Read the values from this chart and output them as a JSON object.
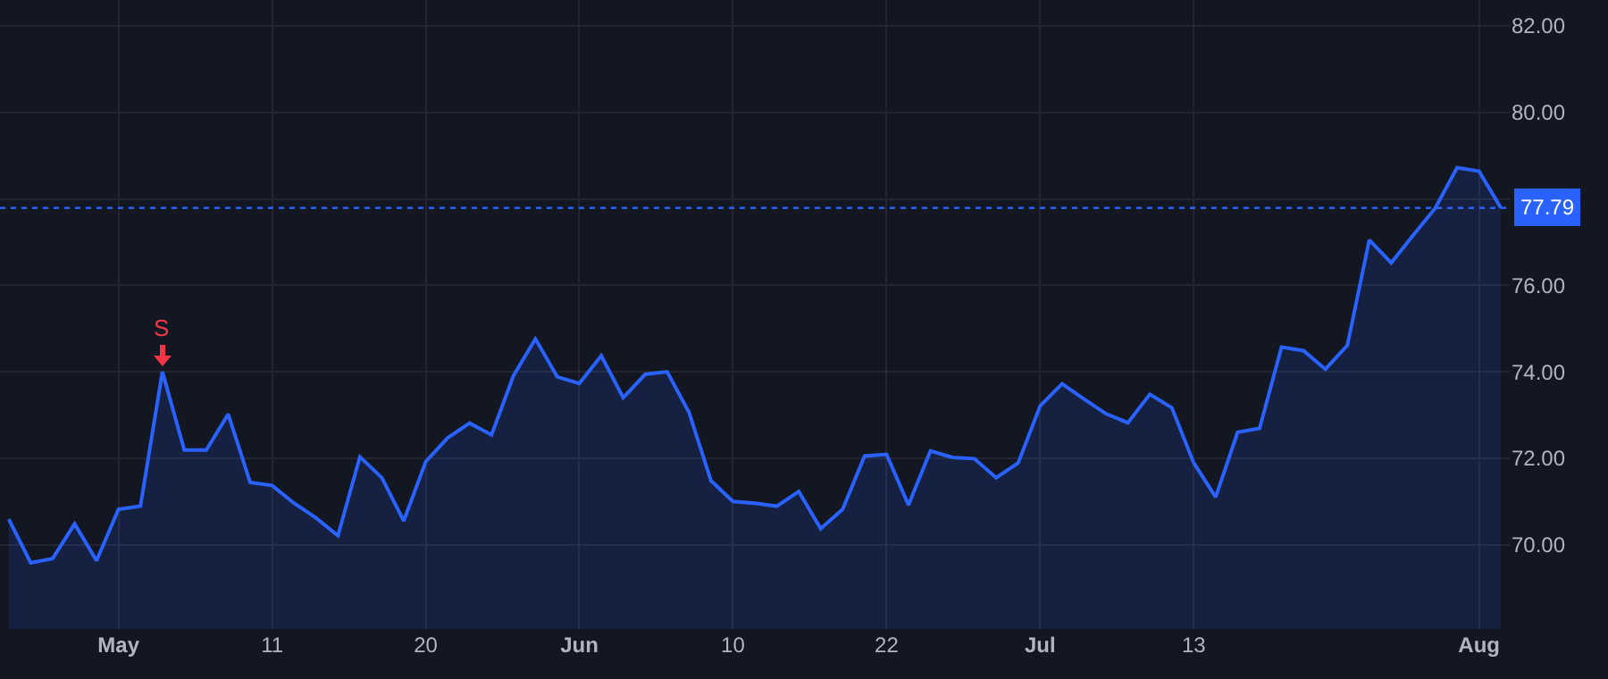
{
  "chart_data": {
    "type": "area",
    "categories": [
      null,
      null,
      null,
      null,
      null,
      "May",
      null,
      null,
      null,
      null,
      null,
      null,
      "11",
      null,
      null,
      null,
      null,
      null,
      null,
      "20",
      null,
      null,
      null,
      null,
      null,
      null,
      "Jun",
      null,
      null,
      null,
      null,
      null,
      null,
      "10",
      null,
      null,
      null,
      null,
      null,
      null,
      "22",
      null,
      null,
      null,
      null,
      null,
      null,
      "Jul",
      null,
      null,
      null,
      null,
      null,
      null,
      "13",
      null,
      null,
      null,
      null,
      null,
      null,
      null,
      null,
      null,
      null,
      null,
      null,
      "Aug",
      null
    ],
    "series": [
      {
        "color": "#2962ff",
        "values": [
          70.59,
          69.58,
          69.68,
          70.48,
          69.63,
          70.82,
          70.89,
          74.0,
          72.19,
          72.19,
          73.02,
          71.44,
          71.37,
          70.96,
          70.62,
          70.21,
          72.03,
          71.55,
          70.55,
          71.92,
          72.47,
          72.81,
          72.54,
          73.91,
          74.76,
          73.88,
          73.73,
          74.37,
          73.4,
          73.94,
          74.0,
          73.06,
          71.48,
          71.0,
          70.96,
          70.89,
          71.23,
          70.37,
          70.82,
          72.05,
          72.09,
          70.92,
          72.17,
          72.02,
          71.99,
          71.55,
          71.89,
          73.21,
          73.72,
          73.37,
          73.03,
          72.82,
          73.48,
          73.17,
          71.89,
          71.1,
          72.6,
          72.69,
          74.57,
          74.49,
          74.06,
          74.61,
          77.05,
          76.52,
          77.16,
          77.78,
          78.72,
          78.64,
          77.79
        ]
      }
    ],
    "ylim": [
      68.05,
      82.6
    ],
    "yticks": [
      {
        "value": 70,
        "label": "70.00"
      },
      {
        "value": 72,
        "label": "72.00"
      },
      {
        "value": 74,
        "label": "74.00"
      },
      {
        "value": 76,
        "label": "76.00"
      },
      {
        "value": 78,
        "label": null
      },
      {
        "value": 80,
        "label": "80.00"
      },
      {
        "value": 82,
        "label": "82.00"
      }
    ],
    "grid": true,
    "ref_lines": [
      {
        "axis": "y",
        "value": 77.79,
        "label": "77.79",
        "color": "#2962ff",
        "line_style": "dotted"
      }
    ],
    "annotations": [
      {
        "text": "S",
        "y": 74.0
      }
    ]
  }
}
